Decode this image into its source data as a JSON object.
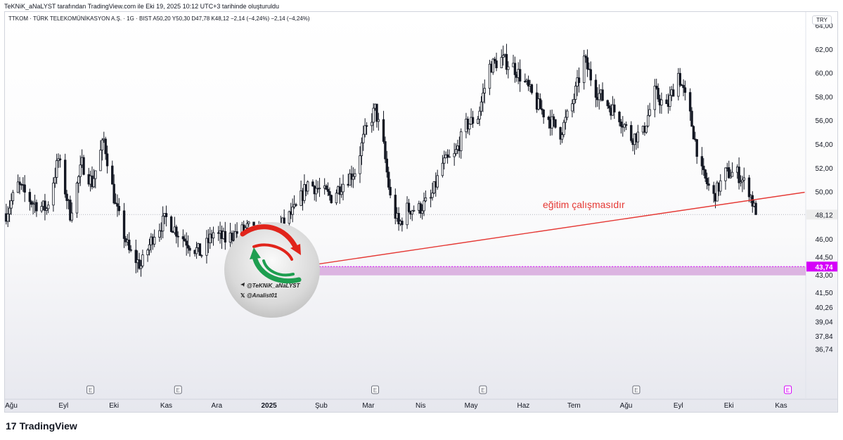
{
  "header": {
    "caption": "TeKNiK_aNaLYST tarafından TradingView.com ile Eki 19, 2025 10:12 UTC+3 tarihinde oluşturuldu",
    "symbol_line": "TTKOM · TÜRK TELEKOMÜNİKASYON A.Ş. · 1G · BIST  A50,20  Y50,30  D47,78  K48,12  −2,14 (−4,24%)  −2,14 (−4,24%)",
    "currency": "TRY"
  },
  "footer": {
    "logo_text": "TradingView",
    "logo_mark": "17"
  },
  "watermark": {
    "line1": "@TeKNiK_aNaLYST",
    "line2": "@Analist01"
  },
  "annotation": {
    "text": "eğitim çalışmasıdır",
    "color": "#e53935"
  },
  "colors": {
    "up": "#131722",
    "down": "#131722",
    "trendline": "#e53935",
    "zone": "#c77dce",
    "zone_label": "#d500f9",
    "last_price_bg": "#ededed"
  },
  "chart_data": {
    "type": "candlestick",
    "title": "",
    "xlabel": "",
    "ylabel": "",
    "ylim": [
      36.2,
      64.6
    ],
    "grid": false,
    "y_ticks": [
      "36,74",
      "37,84",
      "39,04",
      "40,26",
      "41,50",
      "43,00",
      "44,50",
      "46,00",
      "48,00",
      "50,00",
      "52,00",
      "54,00",
      "56,00",
      "58,00",
      "60,00",
      "62,00",
      "64,00"
    ],
    "x_ticks": [
      {
        "label": "Ağu",
        "date": "2024-08-01",
        "bold": false
      },
      {
        "label": "Eyl",
        "date": "2024-09-01",
        "bold": false
      },
      {
        "label": "Eki",
        "date": "2024-10-01",
        "bold": false
      },
      {
        "label": "Kas",
        "date": "2024-11-01",
        "bold": false
      },
      {
        "label": "Ara",
        "date": "2024-12-01",
        "bold": false
      },
      {
        "label": "2025",
        "date": "2025-01-01",
        "bold": true
      },
      {
        "label": "Şub",
        "date": "2025-02-01",
        "bold": false
      },
      {
        "label": "Mar",
        "date": "2025-03-01",
        "bold": false
      },
      {
        "label": "Nis",
        "date": "2025-04-01",
        "bold": false
      },
      {
        "label": "May",
        "date": "2025-05-01",
        "bold": false
      },
      {
        "label": "Haz",
        "date": "2025-06-01",
        "bold": false
      },
      {
        "label": "Tem",
        "date": "2025-07-01",
        "bold": false
      },
      {
        "label": "Ağu",
        "date": "2025-08-01",
        "bold": false
      },
      {
        "label": "Eyl",
        "date": "2025-09-01",
        "bold": false
      },
      {
        "label": "Eki",
        "date": "2025-10-01",
        "bold": false
      },
      {
        "label": "Kas",
        "date": "2025-11-01",
        "bold": false
      }
    ],
    "earnings_markers": [
      {
        "date": "2024-09-17",
        "label": "E"
      },
      {
        "date": "2024-11-08",
        "label": "E"
      },
      {
        "date": "2025-03-05",
        "label": "E"
      },
      {
        "date": "2025-05-08",
        "label": "E"
      },
      {
        "date": "2025-08-07",
        "label": "E"
      },
      {
        "date": "2025-11-05",
        "label": "E",
        "upcoming": true
      }
    ],
    "last_price": {
      "label": "48,12",
      "value": 48.12
    },
    "zone": {
      "label": "43,74",
      "from_date": "2025-01-20",
      "top": 43.74,
      "bottom": 43.0
    },
    "trendline": {
      "from": {
        "date": "2025-01-20",
        "value": 43.74
      },
      "to": {
        "date": "2025-11-15",
        "value": 50.0
      }
    },
    "anchors": [
      [
        "2024-07-29",
        48.2
      ],
      [
        "2024-08-05",
        50.6
      ],
      [
        "2024-08-13",
        49.2
      ],
      [
        "2024-08-22",
        48.6
      ],
      [
        "2024-08-29",
        52.8
      ],
      [
        "2024-09-05",
        48.2
      ],
      [
        "2024-09-12",
        52.4
      ],
      [
        "2024-09-18",
        50.8
      ],
      [
        "2024-09-25",
        54.4
      ],
      [
        "2024-10-02",
        48.8
      ],
      [
        "2024-10-10",
        45.0
      ],
      [
        "2024-10-17",
        43.8
      ],
      [
        "2024-10-25",
        46.6
      ],
      [
        "2024-11-01",
        47.8
      ],
      [
        "2024-11-08",
        46.6
      ],
      [
        "2024-11-15",
        45.6
      ],
      [
        "2024-11-22",
        44.8
      ],
      [
        "2024-11-29",
        46.6
      ],
      [
        "2024-12-06",
        46.0
      ],
      [
        "2024-12-13",
        46.6
      ],
      [
        "2024-12-20",
        47.0
      ],
      [
        "2024-12-27",
        46.2
      ],
      [
        "2025-01-03",
        46.2
      ],
      [
        "2025-01-10",
        47.5
      ],
      [
        "2025-01-17",
        48.6
      ],
      [
        "2025-01-24",
        50.8
      ],
      [
        "2025-01-31",
        50.2
      ],
      [
        "2025-02-07",
        49.6
      ],
      [
        "2025-02-14",
        50.8
      ],
      [
        "2025-02-21",
        51.8
      ],
      [
        "2025-02-27",
        55.0
      ],
      [
        "2025-03-05",
        57.0
      ],
      [
        "2025-03-10",
        53.8
      ],
      [
        "2025-03-14",
        49.5
      ],
      [
        "2025-03-19",
        47.2
      ],
      [
        "2025-03-24",
        48.6
      ],
      [
        "2025-03-31",
        48.6
      ],
      [
        "2025-04-07",
        49.4
      ],
      [
        "2025-04-14",
        52.4
      ],
      [
        "2025-04-21",
        53.0
      ],
      [
        "2025-04-28",
        55.6
      ],
      [
        "2025-05-05",
        56.4
      ],
      [
        "2025-05-12",
        60.6
      ],
      [
        "2025-05-19",
        61.2
      ],
      [
        "2025-05-26",
        60.6
      ],
      [
        "2025-06-02",
        59.2
      ],
      [
        "2025-06-09",
        57.4
      ],
      [
        "2025-06-16",
        56.2
      ],
      [
        "2025-06-23",
        55.0
      ],
      [
        "2025-06-30",
        57.4
      ],
      [
        "2025-07-07",
        61.2
      ],
      [
        "2025-07-14",
        58.6
      ],
      [
        "2025-07-21",
        57.4
      ],
      [
        "2025-07-28",
        56.4
      ],
      [
        "2025-08-04",
        54.6
      ],
      [
        "2025-08-11",
        55.0
      ],
      [
        "2025-08-18",
        58.4
      ],
      [
        "2025-08-25",
        57.0
      ],
      [
        "2025-09-01",
        60.0
      ],
      [
        "2025-09-08",
        56.4
      ],
      [
        "2025-09-15",
        51.6
      ],
      [
        "2025-09-22",
        49.6
      ],
      [
        "2025-09-29",
        51.6
      ],
      [
        "2025-10-06",
        51.6
      ],
      [
        "2025-10-13",
        50.2
      ],
      [
        "2025-10-17",
        48.12
      ]
    ]
  }
}
